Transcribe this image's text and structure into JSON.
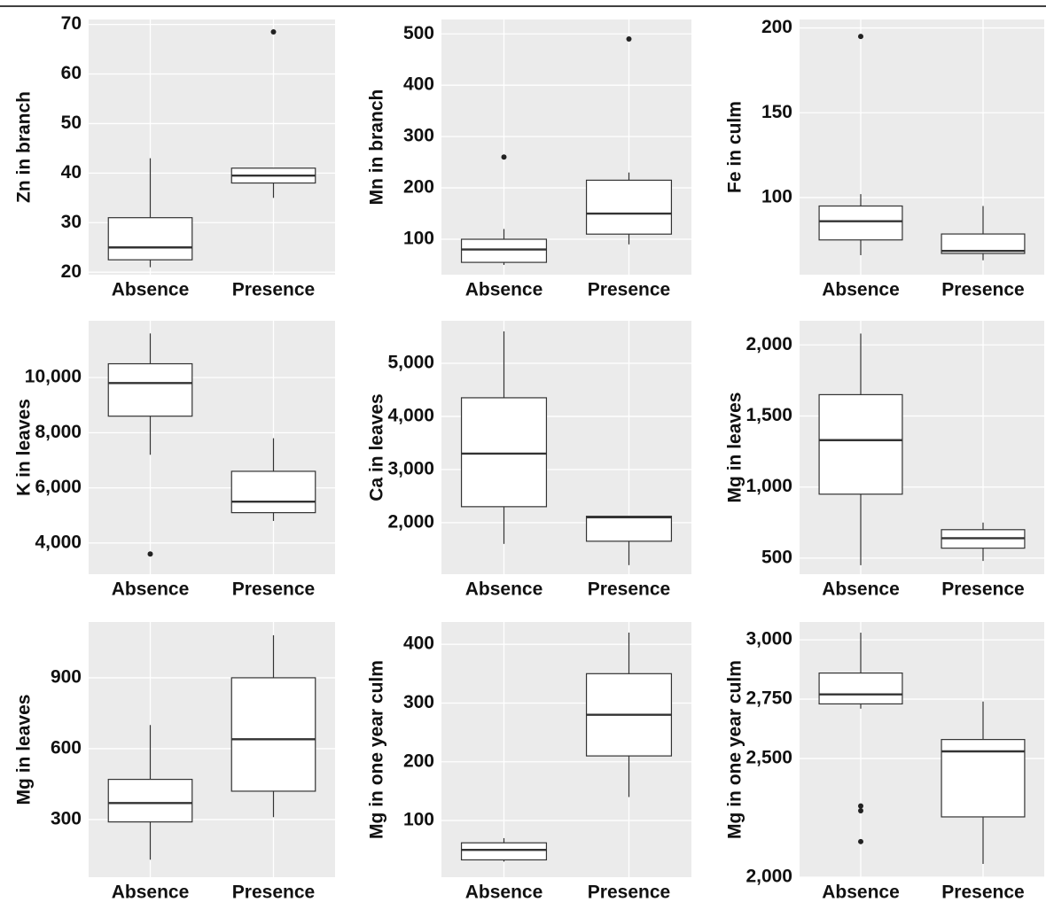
{
  "chart_data": [
    {
      "type": "box",
      "ylabel": "Zn in branch",
      "categories": [
        "Absence",
        "Presence"
      ],
      "boxes": [
        {
          "whisker_low": 21,
          "q1": 22.5,
          "median": 25,
          "q3": 31,
          "whisker_high": 43,
          "outliers": []
        },
        {
          "whisker_low": 35,
          "q1": 38,
          "median": 39.5,
          "q3": 41,
          "whisker_high": 41,
          "outliers": [
            68.5
          ]
        }
      ],
      "ylim": [
        19.5,
        71
      ],
      "yticks": [
        20,
        30,
        40,
        50,
        60,
        70
      ]
    },
    {
      "type": "box",
      "ylabel": "Mn in branch",
      "categories": [
        "Absence",
        "Presence"
      ],
      "boxes": [
        {
          "whisker_low": 50,
          "q1": 55,
          "median": 80,
          "q3": 100,
          "whisker_high": 120,
          "outliers": [
            260
          ]
        },
        {
          "whisker_low": 90,
          "q1": 110,
          "median": 150,
          "q3": 215,
          "whisker_high": 230,
          "outliers": [
            490
          ]
        }
      ],
      "ylim": [
        31,
        528
      ],
      "yticks": [
        100,
        200,
        300,
        400,
        500
      ]
    },
    {
      "type": "box",
      "ylabel": "Fe in culm",
      "categories": [
        "Absence",
        "Presence"
      ],
      "boxes": [
        {
          "whisker_low": 66,
          "q1": 75,
          "median": 86,
          "q3": 95,
          "whisker_high": 102,
          "outliers": [
            195
          ]
        },
        {
          "whisker_low": 63,
          "q1": 67,
          "median": 68.5,
          "q3": 78.5,
          "whisker_high": 95,
          "outliers": []
        }
      ],
      "ylim": [
        54.5,
        205
      ],
      "yticks": [
        100,
        150,
        200
      ]
    },
    {
      "type": "box",
      "ylabel": "K in leaves",
      "categories": [
        "Absence",
        "Presence"
      ],
      "boxes": [
        {
          "whisker_low": 7200,
          "q1": 8600,
          "median": 9800,
          "q3": 10500,
          "whisker_high": 11600,
          "outliers": [
            3600
          ]
        },
        {
          "whisker_low": 4800,
          "q1": 5100,
          "median": 5500,
          "q3": 6600,
          "whisker_high": 7800,
          "outliers": []
        }
      ],
      "ylim": [
        2870,
        12060
      ],
      "yticks": [
        {
          "value": 4000,
          "label": "4,000"
        },
        {
          "value": 6000,
          "label": "6,000"
        },
        {
          "value": 8000,
          "label": "8,000"
        },
        {
          "value": 10000,
          "label": "10,000"
        }
      ]
    },
    {
      "type": "box",
      "ylabel": "Ca in leaves",
      "categories": [
        "Absence",
        "Presence"
      ],
      "boxes": [
        {
          "whisker_low": 1600,
          "q1": 2300,
          "median": 3300,
          "q3": 4350,
          "whisker_high": 5600,
          "outliers": []
        },
        {
          "whisker_low": 1200,
          "q1": 1650,
          "median": 2100,
          "q3": 2120,
          "whisker_high": 2120,
          "outliers": []
        }
      ],
      "ylim": [
        1030,
        5800
      ],
      "yticks": [
        {
          "value": 2000,
          "label": "2,000"
        },
        {
          "value": 3000,
          "label": "3,000"
        },
        {
          "value": 4000,
          "label": "4,000"
        },
        {
          "value": 5000,
          "label": "5,000"
        }
      ]
    },
    {
      "type": "box",
      "ylabel": "Mg in leaves",
      "categories": [
        "Absence",
        "Presence"
      ],
      "boxes": [
        {
          "whisker_low": 450,
          "q1": 950,
          "median": 1330,
          "q3": 1650,
          "whisker_high": 2080,
          "outliers": []
        },
        {
          "whisker_low": 480,
          "q1": 570,
          "median": 640,
          "q3": 700,
          "whisker_high": 750,
          "outliers": []
        }
      ],
      "ylim": [
        387,
        2170
      ],
      "yticks": [
        500,
        {
          "value": 1000,
          "label": "1,000"
        },
        {
          "value": 1500,
          "label": "1,500"
        },
        {
          "value": 2000,
          "label": "2,000"
        }
      ]
    },
    {
      "type": "box",
      "ylabel": "Mg in leaves",
      "categories": [
        "Absence",
        "Presence"
      ],
      "boxes": [
        {
          "whisker_low": 130,
          "q1": 290,
          "median": 370,
          "q3": 470,
          "whisker_high": 700,
          "outliers": []
        },
        {
          "whisker_low": 310,
          "q1": 420,
          "median": 640,
          "q3": 900,
          "whisker_high": 1080,
          "outliers": []
        }
      ],
      "ylim": [
        56,
        1136
      ],
      "yticks": [
        300,
        600,
        900
      ]
    },
    {
      "type": "box",
      "ylabel": "Mg in one year culm",
      "categories": [
        "Absence",
        "Presence"
      ],
      "boxes": [
        {
          "whisker_low": 30,
          "q1": 33,
          "median": 50,
          "q3": 62,
          "whisker_high": 70,
          "outliers": []
        },
        {
          "whisker_low": 140,
          "q1": 210,
          "median": 280,
          "q3": 350,
          "whisker_high": 420,
          "outliers": []
        }
      ],
      "ylim": [
        3.5,
        438
      ],
      "yticks": [
        100,
        200,
        300,
        400
      ]
    },
    {
      "type": "box",
      "ylabel": "Mg in one year culm",
      "categories": [
        "Absence",
        "Presence"
      ],
      "boxes": [
        {
          "whisker_low": 2710,
          "q1": 2730,
          "median": 2770,
          "q3": 2860,
          "whisker_high": 3030,
          "outliers": [
            2300,
            2280,
            2150
          ]
        },
        {
          "whisker_low": 2056,
          "q1": 2254,
          "median": 2530,
          "q3": 2580,
          "whisker_high": 2740,
          "outliers": []
        }
      ],
      "ylim": [
        2000,
        3075
      ],
      "yticks": [
        {
          "value": 2000,
          "label": "2,000"
        },
        {
          "value": 2500,
          "label": "2,500"
        },
        {
          "value": 2750,
          "label": "2,750"
        },
        {
          "value": 3000,
          "label": "3,000"
        }
      ]
    }
  ]
}
